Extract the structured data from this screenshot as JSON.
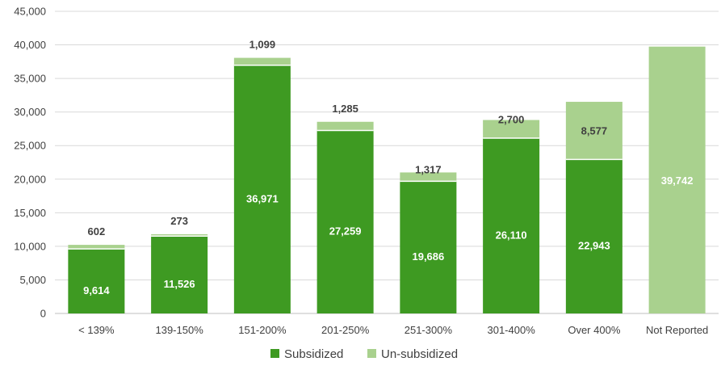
{
  "chart_data": {
    "type": "bar",
    "stacked": true,
    "categories": [
      "< 139%",
      "139-150%",
      "151-200%",
      "201-250%",
      "251-300%",
      "301-400%",
      "Over 400%",
      "Not Reported"
    ],
    "series": [
      {
        "name": "Subsidized",
        "color": "#3e9a22",
        "values": [
          9614,
          11526,
          36971,
          27259,
          19686,
          26110,
          22943,
          0
        ],
        "labels": [
          "9,614",
          "11,526",
          "36,971",
          "27,259",
          "19,686",
          "26,110",
          "22,943",
          ""
        ]
      },
      {
        "name": "Un-subsidized",
        "color": "#a9d18e",
        "values": [
          602,
          273,
          1099,
          1285,
          1317,
          2700,
          8577,
          39742
        ],
        "labels": [
          "602",
          "273",
          "1,099",
          "1,285",
          "1,317",
          "2,700",
          "8,577",
          "39,742"
        ]
      }
    ],
    "ylim": [
      0,
      45000
    ],
    "yticks": [
      0,
      5000,
      10000,
      15000,
      20000,
      25000,
      30000,
      35000,
      40000,
      45000
    ],
    "ytick_labels": [
      "0",
      "5,000",
      "10,000",
      "15,000",
      "20,000",
      "25,000",
      "30,000",
      "35,000",
      "40,000",
      "45,000"
    ],
    "grid": true,
    "legend_position": "bottom",
    "title": "",
    "xlabel": "",
    "ylabel": ""
  }
}
